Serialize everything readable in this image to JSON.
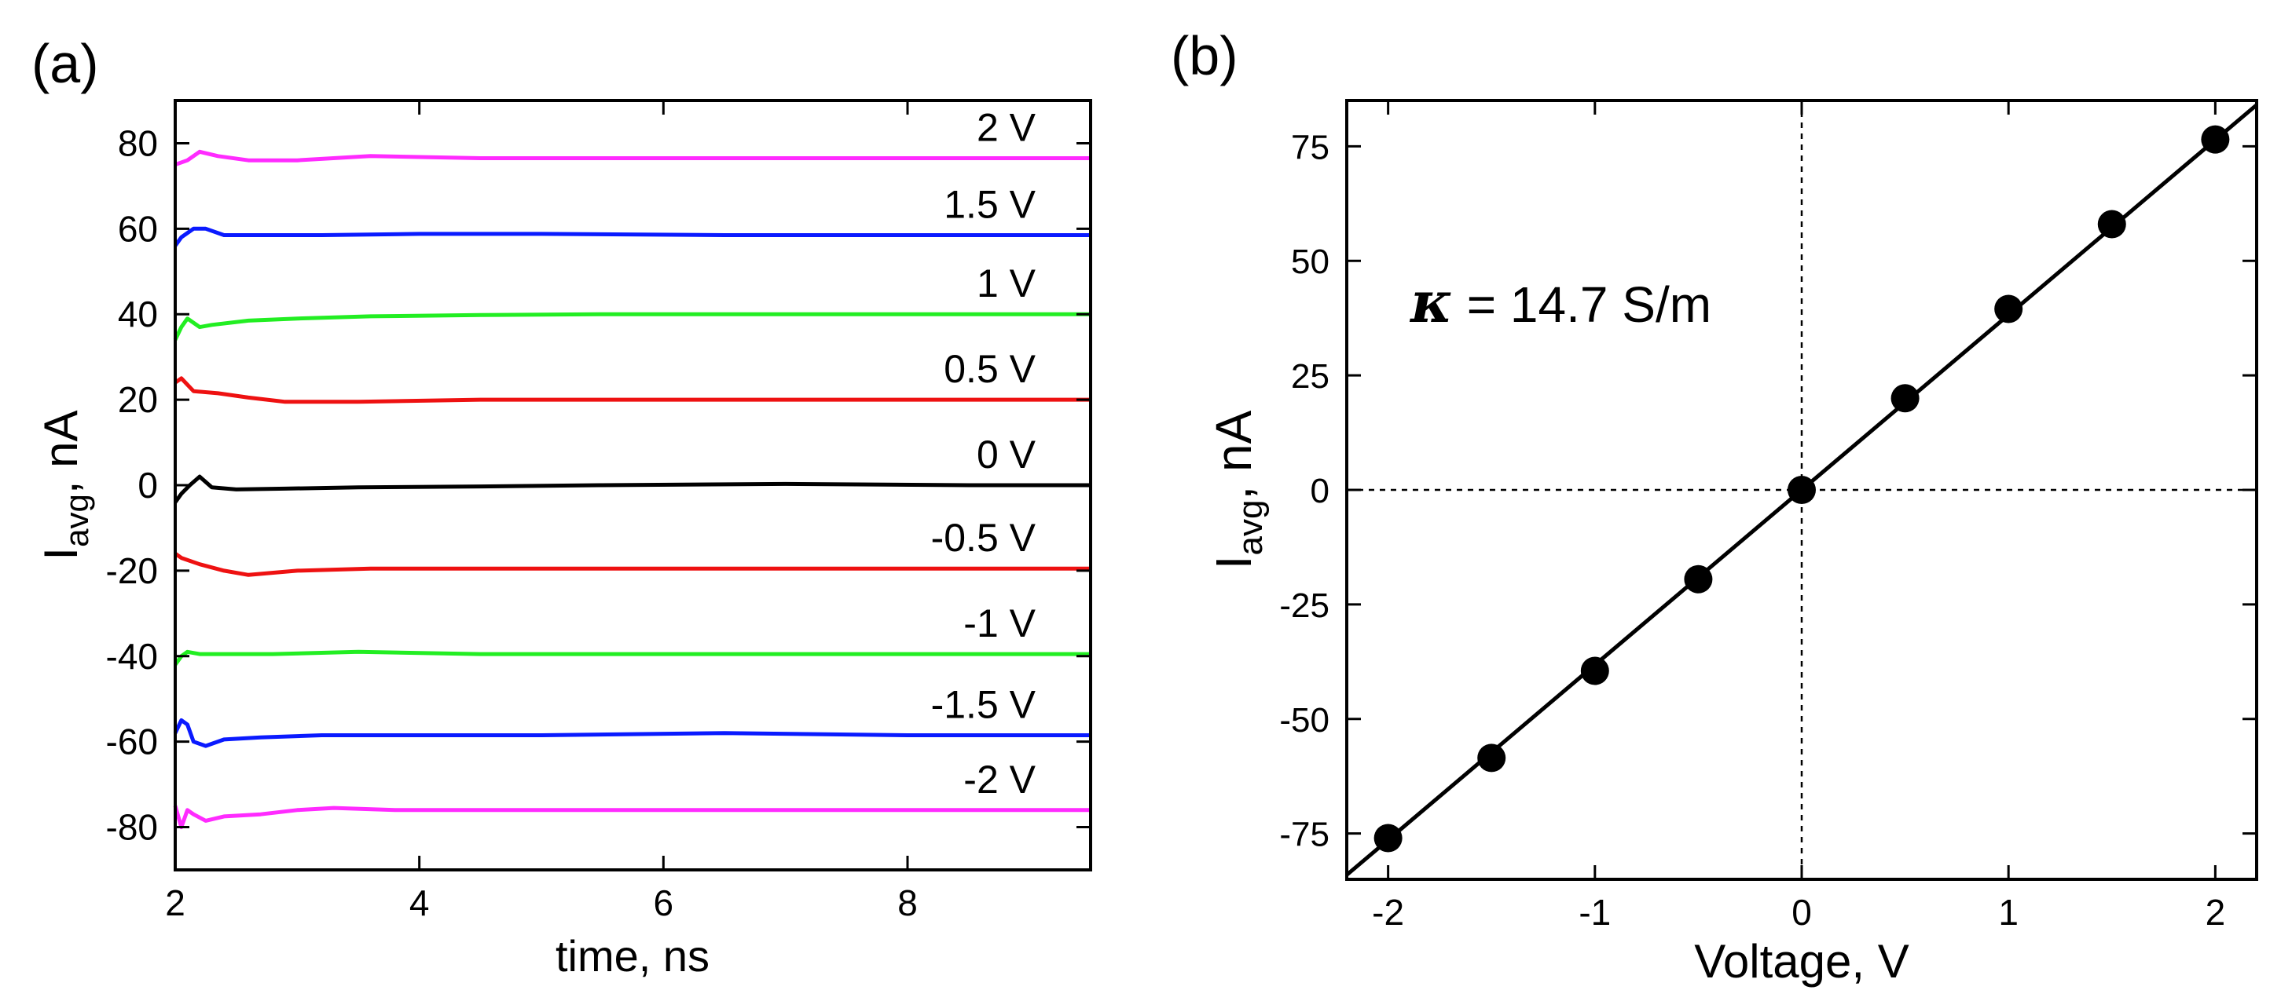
{
  "chart_data": [
    {
      "panel_label": "(a)",
      "type": "line",
      "title": "",
      "xlabel": "time, ns",
      "ylabel_main": "I",
      "ylabel_sub": "avg",
      "ylabel_unit": ", nA",
      "xlim": [
        2,
        9.5
      ],
      "ylim": [
        -90,
        90
      ],
      "xticks": [
        2,
        4,
        6,
        8
      ],
      "yticks": [
        -80,
        -60,
        -40,
        -20,
        0,
        20,
        40,
        60,
        80
      ],
      "grid": false,
      "series": [
        {
          "name": "2 V",
          "voltage": 2,
          "color": "#ff2bff",
          "x": [
            2.0,
            2.1,
            2.2,
            2.35,
            2.6,
            3.0,
            3.6,
            4.5,
            5.5,
            7.0,
            8.5,
            9.5
          ],
          "y": [
            75,
            76,
            78,
            77,
            76,
            76,
            77,
            76.5,
            76.5,
            76.5,
            76.5,
            76.5
          ]
        },
        {
          "name": "1.5 V",
          "voltage": 1.5,
          "color": "#0a1aff",
          "x": [
            2.0,
            2.05,
            2.15,
            2.25,
            2.4,
            2.7,
            3.2,
            4.0,
            5.0,
            6.5,
            8.0,
            9.5
          ],
          "y": [
            56,
            58,
            60,
            60,
            58.5,
            58.5,
            58.5,
            58.8,
            58.8,
            58.5,
            58.5,
            58.5
          ]
        },
        {
          "name": "1 V",
          "voltage": 1,
          "color": "#22ee22",
          "x": [
            2.0,
            2.05,
            2.1,
            2.2,
            2.3,
            2.6,
            3.0,
            3.6,
            4.5,
            5.5,
            7.0,
            8.5,
            9.5
          ],
          "y": [
            34,
            37,
            39,
            37,
            37.5,
            38.5,
            39,
            39.5,
            39.8,
            40,
            40,
            40,
            40
          ]
        },
        {
          "name": "0.5 V",
          "voltage": 0.5,
          "color": "#ee1111",
          "x": [
            2.0,
            2.05,
            2.15,
            2.35,
            2.6,
            2.9,
            3.5,
            4.5,
            5.5,
            7.0,
            8.5,
            9.5
          ],
          "y": [
            24,
            25,
            22,
            21.5,
            20.5,
            19.5,
            19.5,
            20,
            20,
            20,
            20,
            20
          ]
        },
        {
          "name": "0 V",
          "voltage": 0,
          "color": "#000000",
          "x": [
            2.0,
            2.05,
            2.12,
            2.2,
            2.3,
            2.5,
            2.9,
            3.5,
            4.5,
            5.5,
            7.0,
            8.5,
            9.5
          ],
          "y": [
            -4,
            -2,
            0,
            2,
            -0.5,
            -1,
            -0.8,
            -0.5,
            -0.3,
            0,
            0.3,
            0,
            0
          ]
        },
        {
          "name": "-0.5 V",
          "voltage": -0.5,
          "color": "#ee1111",
          "x": [
            2.0,
            2.05,
            2.2,
            2.4,
            2.6,
            3.0,
            3.6,
            4.5,
            5.5,
            7.0,
            8.5,
            9.5
          ],
          "y": [
            -16,
            -17,
            -18.5,
            -20,
            -21,
            -20,
            -19.5,
            -19.5,
            -19.5,
            -19.5,
            -19.5,
            -19.5
          ]
        },
        {
          "name": "-1 V",
          "voltage": -1,
          "color": "#22ee22",
          "x": [
            2.0,
            2.05,
            2.1,
            2.2,
            2.4,
            2.8,
            3.5,
            4.5,
            5.5,
            7.0,
            8.5,
            9.5
          ],
          "y": [
            -42,
            -40,
            -39,
            -39.5,
            -39.5,
            -39.5,
            -39,
            -39.5,
            -39.5,
            -39.5,
            -39.5,
            -39.5
          ]
        },
        {
          "name": "-1.5 V",
          "voltage": -1.5,
          "color": "#0a1aff",
          "x": [
            2.0,
            2.05,
            2.1,
            2.15,
            2.25,
            2.4,
            2.7,
            3.2,
            4.0,
            5.0,
            6.5,
            8.0,
            9.5
          ],
          "y": [
            -58,
            -55,
            -56,
            -60,
            -61,
            -59.5,
            -59,
            -58.5,
            -58.5,
            -58.5,
            -58,
            -58.5,
            -58.5
          ]
        },
        {
          "name": "-2 V",
          "voltage": -2,
          "color": "#ff2bff",
          "x": [
            2.0,
            2.05,
            2.1,
            2.15,
            2.25,
            2.4,
            2.7,
            3.0,
            3.3,
            3.8,
            4.5,
            5.5,
            7.0,
            8.5,
            9.5
          ],
          "y": [
            -75,
            -80,
            -76,
            -77,
            -78.5,
            -77.5,
            -77,
            -76,
            -75.5,
            -76,
            -76,
            -76,
            -76,
            -76,
            -76
          ]
        }
      ]
    },
    {
      "panel_label": "(b)",
      "type": "scatter",
      "title": "",
      "xlabel": "Voltage, V",
      "ylabel_main": "I",
      "ylabel_sub": "avg",
      "ylabel_unit": ", nA",
      "xlim": [
        -2.2,
        2.2
      ],
      "ylim": [
        -85,
        85
      ],
      "xticks": [
        -2,
        -1,
        0,
        1,
        2
      ],
      "yticks": [
        -75,
        -50,
        -25,
        0,
        25,
        50,
        75
      ],
      "grid": false,
      "points": {
        "x": [
          -2,
          -1.5,
          -1,
          -0.5,
          0,
          0.5,
          1,
          1.5,
          2
        ],
        "y": [
          -76,
          -58.5,
          -39.5,
          -19.5,
          0,
          20,
          39.5,
          58,
          76.5
        ]
      },
      "fit_line": {
        "slope": 38.2,
        "intercept": 0
      },
      "annotation_symbol": "κ",
      "annotation_text": " = 14.7 S/m",
      "marker_color": "#000000",
      "reference_lines": [
        "x = 0",
        "y = 0"
      ]
    }
  ]
}
